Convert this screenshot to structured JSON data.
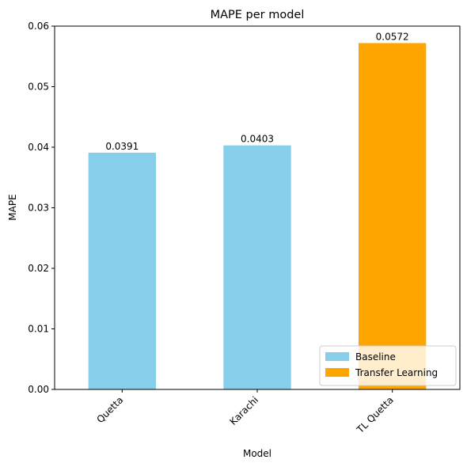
{
  "chart_data": {
    "type": "bar",
    "title": "MAPE per model",
    "xlabel": "Model",
    "ylabel": "MAPE",
    "categories": [
      "Quetta",
      "Karachi",
      "TL Quetta"
    ],
    "values": [
      0.0391,
      0.0403,
      0.0572
    ],
    "value_labels": [
      "0.0391",
      "0.0403",
      "0.0572"
    ],
    "bar_groups": [
      "Baseline",
      "Baseline",
      "Transfer Learning"
    ],
    "ylim": [
      0,
      0.06
    ],
    "yticks": [
      0,
      0.01,
      0.02,
      0.03,
      0.04,
      0.05,
      0.06
    ],
    "ytick_labels": [
      "0.00",
      "0.01",
      "0.02",
      "0.03",
      "0.04",
      "0.05",
      "0.06"
    ],
    "xtick_rotation": 45,
    "grid": false,
    "legend": {
      "placement": "lower-right",
      "entries": [
        {
          "label": "Baseline",
          "color": "#87ceeb"
        },
        {
          "label": "Transfer Learning",
          "color": "#ffa500"
        }
      ]
    },
    "colors": {
      "Baseline": "#87ceeb",
      "Transfer Learning": "#ffa500"
    }
  }
}
